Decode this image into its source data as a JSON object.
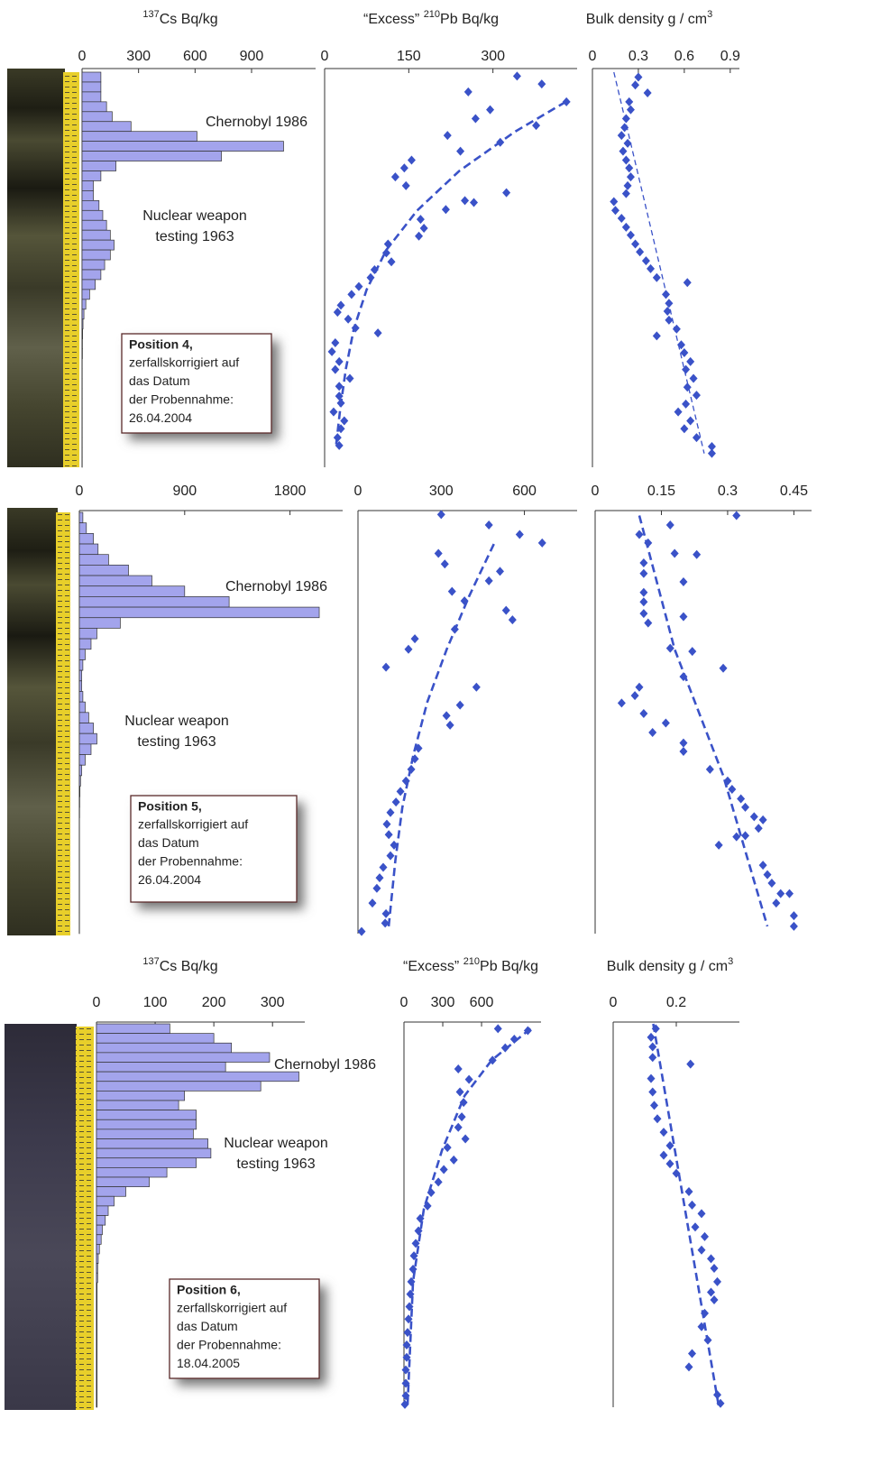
{
  "chart_data": [
    {
      "type": "bar",
      "title_parts": [
        {
          "text": "137",
          "sup": true
        },
        {
          "text": "Cs Bq/kg"
        }
      ],
      "categories": [
        null,
        null,
        null,
        null,
        null,
        null,
        null,
        null,
        null,
        null,
        null,
        null,
        null,
        null,
        null,
        null,
        null,
        null,
        null,
        null,
        null,
        null,
        null,
        null,
        null,
        null,
        null,
        null,
        null,
        null,
        null,
        null,
        null,
        null,
        null,
        null,
        null,
        null,
        null,
        null
      ],
      "values": [
        100,
        100,
        100,
        130,
        160,
        260,
        610,
        1070,
        740,
        180,
        100,
        60,
        60,
        90,
        110,
        130,
        150,
        170,
        150,
        120,
        100,
        70,
        40,
        20,
        10,
        5,
        3,
        2,
        2,
        1,
        1,
        1,
        1,
        1,
        1,
        1,
        1,
        1,
        1,
        1
      ],
      "color": "#a3a4ec",
      "xlim": [
        0,
        1240
      ],
      "xticks": [
        0,
        300,
        600,
        900
      ],
      "annotations": [
        [
          "Chernobyl 1986"
        ],
        [
          "Nuclear weapon",
          "testing 1963"
        ]
      ],
      "note": {
        "heading": "Position 4,",
        "lines": [
          "zerfallskorrigiert auf",
          "das Datum",
          "der Probennahme:",
          "26.04.2004"
        ]
      }
    },
    {
      "type": "scatter",
      "title_parts": [
        {
          "text": "“Excess” "
        },
        {
          "text": "210",
          "sup": true
        },
        {
          "text": "Pb Bq/kg"
        }
      ],
      "x": [
        343,
        387,
        256,
        431,
        295,
        269,
        377,
        219,
        313,
        242,
        155,
        142,
        126,
        145,
        324,
        250,
        266,
        216,
        171,
        177,
        168,
        113,
        110,
        119,
        89,
        82,
        61,
        48,
        29,
        23,
        42,
        55,
        95,
        19,
        13,
        26,
        19,
        45,
        26,
        26,
        29,
        16,
        35,
        29,
        23,
        26
      ],
      "y": [
        0.4,
        1.2,
        2,
        3,
        3.8,
        4.7,
        5.4,
        6.4,
        7.1,
        8,
        8.9,
        9.7,
        10.6,
        11.5,
        12.2,
        13,
        13.2,
        13.9,
        14.9,
        15.8,
        16.6,
        17.4,
        18.3,
        19.2,
        20,
        20.8,
        21.7,
        22.5,
        23.6,
        24.3,
        25,
        25.9,
        26.4,
        27.4,
        28.3,
        29.3,
        30.1,
        31,
        31.8,
        32.8,
        33.5,
        34.4,
        35.3,
        36.1,
        37,
        37.8
      ],
      "color": "#3a52c8",
      "xlim": [
        0,
        450
      ],
      "xticks": [
        0,
        150,
        300
      ],
      "ylim": [
        40,
        0
      ],
      "fit": {
        "x": [
          430,
          340,
          240,
          165,
          110,
          75,
          52,
          38,
          28,
          20
        ],
        "y": [
          3,
          6,
          10,
          14,
          18,
          22,
          26,
          30,
          34,
          38
        ],
        "color": "#3a52c8",
        "style": "dashed"
      }
    },
    {
      "type": "scatter",
      "title_parts": [
        {
          "text": "Bulk density g / cm"
        },
        {
          "text": "3",
          "sup": true
        }
      ],
      "x": [
        0.3,
        0.28,
        0.36,
        0.24,
        0.25,
        0.22,
        0.21,
        0.19,
        0.23,
        0.2,
        0.22,
        0.24,
        0.25,
        0.23,
        0.22,
        0.14,
        0.15,
        0.19,
        0.22,
        0.25,
        0.28,
        0.31,
        0.35,
        0.38,
        0.42,
        0.62,
        0.48,
        0.5,
        0.49,
        0.5,
        0.55,
        0.42,
        0.58,
        0.6,
        0.64,
        0.61,
        0.66,
        0.62,
        0.68,
        0.61,
        0.56,
        0.64,
        0.6,
        0.68,
        0.78,
        0.78
      ],
      "y": [
        0.5,
        1.3,
        2.1,
        3,
        3.8,
        4.7,
        5.6,
        6.4,
        7.2,
        8,
        8.9,
        9.7,
        10.6,
        11.5,
        12.3,
        13.1,
        14,
        14.8,
        15.7,
        16.5,
        17.4,
        18.2,
        19.1,
        19.9,
        20.8,
        21.3,
        22.5,
        23.4,
        24.2,
        25.1,
        26,
        26.7,
        27.6,
        28.4,
        29.3,
        30.1,
        31,
        31.9,
        32.7,
        33.6,
        34.4,
        35.3,
        36.1,
        37,
        37.9,
        38.6
      ],
      "color": "#3a52c8",
      "xlim": [
        0,
        0.96
      ],
      "xticks": [
        0,
        0.3,
        0.6,
        0.9
      ],
      "ylim": [
        40,
        0
      ],
      "fit": {
        "x": [
          0.14,
          0.73
        ],
        "y": [
          0,
          38.6
        ],
        "color": "#3a52c8",
        "style": "thin-dashed"
      }
    },
    {
      "type": "bar",
      "categories": [
        null,
        null,
        null,
        null,
        null,
        null,
        null,
        null,
        null,
        null,
        null,
        null,
        null,
        null,
        null,
        null,
        null,
        null,
        null,
        null,
        null,
        null,
        null,
        null,
        null,
        null,
        null,
        null,
        null,
        null,
        null,
        null,
        null,
        null,
        null,
        null,
        null,
        null,
        null,
        null
      ],
      "values": [
        30,
        60,
        120,
        160,
        250,
        420,
        620,
        900,
        1280,
        2050,
        350,
        150,
        100,
        50,
        30,
        20,
        20,
        30,
        50,
        80,
        120,
        150,
        100,
        50,
        20,
        10,
        5,
        3,
        2,
        1,
        1,
        1,
        1,
        1,
        1,
        1,
        1,
        1,
        1,
        1
      ],
      "color": "#a3a4ec",
      "xlim": [
        0,
        2250
      ],
      "xticks": [
        0,
        900,
        1800
      ],
      "annotations": [
        [
          "Chernobyl 1986"
        ],
        [
          "Nuclear weapon",
          "testing 1963"
        ]
      ],
      "note": {
        "heading": "Position 5,",
        "lines": [
          "zerfallskorrigiert auf",
          "das Datum",
          "der Probennahme:",
          "26.04.2004"
        ]
      }
    },
    {
      "type": "scatter",
      "x": [
        300,
        472,
        583,
        664,
        290,
        313,
        512,
        472,
        339,
        384,
        534,
        557,
        349,
        205,
        182,
        101,
        427,
        368,
        319,
        332,
        218,
        205,
        192,
        173,
        153,
        137,
        117,
        104,
        111,
        130,
        117,
        91,
        78,
        68,
        52,
        101,
        98,
        13
      ],
      "y": [
        0.2,
        1.2,
        2.1,
        2.9,
        3.9,
        4.9,
        5.6,
        6.5,
        7.5,
        8.4,
        9.3,
        10.2,
        11.1,
        12,
        13,
        14.7,
        16.6,
        18.3,
        19.3,
        20.2,
        22.4,
        23.4,
        24.4,
        25.5,
        26.5,
        27.5,
        28.5,
        29.6,
        30.6,
        31.6,
        32.6,
        33.7,
        34.7,
        35.7,
        37.1,
        38.1,
        39,
        39.8
      ],
      "color": "#3a52c8",
      "xlim": [
        0,
        790
      ],
      "xticks": [
        0,
        300,
        600
      ],
      "ylim": [
        40,
        0
      ],
      "fit": {
        "x": [
          490,
          400,
          320,
          250,
          200,
          160,
          135,
          110
        ],
        "y": [
          3,
          8,
          13,
          18,
          23,
          28,
          33,
          39.5
        ],
        "color": "#3a52c8",
        "style": "dashed"
      }
    },
    {
      "type": "scatter",
      "x": [
        0.32,
        0.17,
        0.1,
        0.12,
        0.18,
        0.23,
        0.11,
        0.11,
        0.2,
        0.11,
        0.11,
        0.11,
        0.2,
        0.12,
        0.17,
        0.22,
        0.2,
        0.29,
        0.1,
        0.09,
        0.06,
        0.11,
        0.16,
        0.13,
        0.2,
        0.2,
        0.26,
        0.3,
        0.31,
        0.33,
        0.34,
        0.36,
        0.38,
        0.37,
        0.34,
        0.28,
        0.32,
        0.38,
        0.39,
        0.4,
        0.42,
        0.44,
        0.41,
        0.45,
        0.45
      ],
      "y": [
        0.3,
        1.2,
        2.1,
        2.9,
        3.9,
        4,
        4.8,
        5.8,
        6.6,
        7.6,
        8.5,
        9.6,
        9.9,
        10.5,
        12.9,
        13.2,
        15.6,
        14.8,
        16.6,
        17.4,
        18.1,
        19.1,
        20,
        20.9,
        21.9,
        22.7,
        24.4,
        25.5,
        26.3,
        27.2,
        28,
        28.9,
        29.2,
        30,
        30.7,
        31.6,
        30.8,
        33.5,
        34.4,
        35.2,
        36.2,
        36.2,
        37.1,
        38.3,
        39.3
      ],
      "color": "#3a52c8",
      "xlim": [
        0,
        0.49
      ],
      "xticks": [
        0,
        0.15,
        0.3,
        0.45
      ],
      "ylim": [
        40,
        0
      ],
      "fit": {
        "x": [
          0.1,
          0.18,
          0.29,
          0.39
        ],
        "y": [
          0.3,
          13,
          25,
          39.3
        ],
        "color": "#3a52c8",
        "style": "dashed"
      }
    },
    {
      "type": "bar",
      "title_parts": [
        {
          "text": "137",
          "sup": true
        },
        {
          "text": "Cs Bq/kg"
        }
      ],
      "categories": [
        null,
        null,
        null,
        null,
        null,
        null,
        null,
        null,
        null,
        null,
        null,
        null,
        null,
        null,
        null,
        null,
        null,
        null,
        null,
        null,
        null,
        null,
        null,
        null,
        null,
        null,
        null,
        null,
        null,
        null,
        null,
        null,
        null,
        null,
        null,
        null,
        null,
        null,
        null,
        null
      ],
      "values": [
        125,
        200,
        230,
        295,
        220,
        345,
        280,
        150,
        140,
        170,
        170,
        165,
        190,
        195,
        170,
        120,
        90,
        50,
        30,
        20,
        15,
        10,
        8,
        5,
        3,
        2,
        2,
        1,
        1,
        1,
        1,
        1,
        1,
        1,
        1,
        1,
        1,
        1,
        1,
        1
      ],
      "color": "#a3a4ec",
      "xlim": [
        0,
        355
      ],
      "xticks": [
        0,
        100,
        200,
        300
      ],
      "annotations": [
        [
          "Chernobyl 1986"
        ],
        [
          "Nuclear weapon",
          "testing 1963"
        ]
      ],
      "note": {
        "heading": "Position 6,",
        "lines": [
          "zerfallskorrigiert auf",
          "das Datum",
          "der Probennahme:",
          "18.04.2005"
        ]
      }
    },
    {
      "type": "scatter",
      "title_parts": [
        {
          "text": "“Excess” "
        },
        {
          "text": "210",
          "sup": true
        },
        {
          "text": "Pb Bq/kg"
        }
      ],
      "x": [
        727,
        958,
        853,
        783,
        685,
        420,
        503,
        433,
        461,
        447,
        420,
        475,
        336,
        385,
        308,
        266,
        210,
        182,
        126,
        112,
        91,
        77,
        70,
        56,
        49,
        42,
        35,
        28,
        21,
        21,
        14,
        14,
        14,
        7
      ],
      "y": [
        0.5,
        0.7,
        1.6,
        2.5,
        3.8,
        4.7,
        5.8,
        7.1,
        8.2,
        9.7,
        10.8,
        12,
        12.9,
        14.2,
        15.2,
        16.5,
        17.6,
        19,
        20.3,
        21.6,
        22.9,
        24.2,
        25.6,
        26.9,
        28.2,
        29.5,
        30.8,
        32.2,
        33.5,
        34.8,
        36.1,
        37.5,
        38.8,
        39.7
      ],
      "color": "#3a52c8",
      "xlim": [
        0,
        1060
      ],
      "xticks": [
        0,
        300,
        600
      ],
      "ylim": [
        40,
        0
      ],
      "fit": {
        "x": [
          979,
          678,
          469,
          294,
          154,
          70,
          28
        ],
        "y": [
          0.5,
          3.8,
          7.5,
          13.2,
          19.3,
          26.9,
          39.7
        ],
        "color": "#3a52c8",
        "style": "dashed"
      }
    },
    {
      "type": "scatter",
      "title_parts": [
        {
          "text": "Bulk density g / cm"
        },
        {
          "text": "3",
          "sup": true
        }
      ],
      "x": [
        0.135,
        0.12,
        0.125,
        0.245,
        0.125,
        0.12,
        0.125,
        0.13,
        0.14,
        0.16,
        0.18,
        0.16,
        0.18,
        0.2,
        0.24,
        0.25,
        0.28,
        0.26,
        0.29,
        0.28,
        0.31,
        0.32,
        0.33,
        0.31,
        0.32,
        0.29,
        0.28,
        0.3,
        0.25,
        0.24,
        0.34,
        0.33
      ],
      "y": [
        0.5,
        1.4,
        2.4,
        4.2,
        3.5,
        5.7,
        7.1,
        8.5,
        9.9,
        11.3,
        12.7,
        13.7,
        14.6,
        15.6,
        17.5,
        18.9,
        19.8,
        21.2,
        22.2,
        23.6,
        24.5,
        25.5,
        26.9,
        28,
        28.8,
        30.2,
        31.6,
        33,
        34.4,
        35.8,
        39.6,
        38.7
      ],
      "color": "#3a52c8",
      "xlim": [
        0,
        0.4
      ],
      "xticks": [
        0,
        0.2
      ],
      "ylim": [
        40,
        0
      ],
      "fit": {
        "x": [
          0.127,
          0.335
        ],
        "y": [
          0,
          40
        ],
        "color": "#3a52c8",
        "style": "dashed"
      }
    }
  ]
}
